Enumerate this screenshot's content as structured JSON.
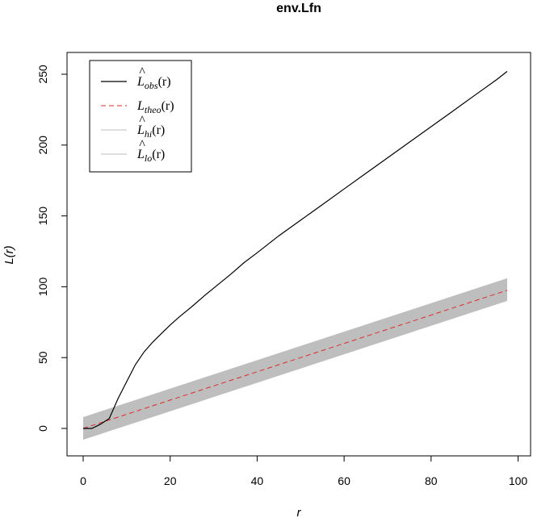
{
  "chart_data": {
    "type": "line",
    "title": "env.Lfn",
    "xlabel": "r",
    "ylabel": "L(r)",
    "xlim": [
      0,
      100
    ],
    "ylim": [
      0,
      250
    ],
    "xticks": [
      0,
      20,
      40,
      60,
      80,
      100
    ],
    "yticks": [
      0,
      50,
      100,
      150,
      200,
      250
    ],
    "legend_position": "top-left",
    "grid": false,
    "colors": {
      "obs": "#000000",
      "theo": "#df2a2a",
      "envelope": "#bebebe"
    },
    "legend": [
      {
        "key": "obs",
        "label_main": "L",
        "label_hat": "^",
        "label_sub": "obs",
        "label_arg": "(r)",
        "style": "solid",
        "color": "#000000"
      },
      {
        "key": "theo",
        "label_main": "L",
        "label_hat": "",
        "label_sub": "theo",
        "label_arg": "(r)",
        "style": "dashed",
        "color": "#df2a2a"
      },
      {
        "key": "hi",
        "label_main": "L",
        "label_hat": "^",
        "label_sub": "hi",
        "label_arg": "(r)",
        "style": "solid",
        "color": "#bebebe"
      },
      {
        "key": "lo",
        "label_main": "L",
        "label_hat": "^",
        "label_sub": "lo",
        "label_arg": "(r)",
        "style": "solid",
        "color": "#bebebe"
      }
    ],
    "series": [
      {
        "name": "obs",
        "x": [
          0,
          2,
          4,
          6,
          8,
          10,
          12,
          14,
          16,
          18,
          20,
          22,
          25,
          28,
          30,
          34,
          37,
          40,
          45,
          50,
          55,
          60,
          65,
          70,
          75,
          80,
          85,
          90,
          95,
          97.5
        ],
        "y": [
          0,
          0,
          3,
          7,
          21,
          33,
          45,
          54,
          61,
          67,
          73,
          78.5,
          86,
          94,
          99,
          109,
          117,
          124,
          136,
          147,
          158,
          169,
          180,
          191,
          202,
          213,
          224,
          235,
          246,
          252
        ]
      },
      {
        "name": "theo",
        "x": [
          0,
          97.5
        ],
        "y": [
          0,
          97.5
        ]
      },
      {
        "name": "hi",
        "x": [
          0,
          97.5
        ],
        "y": [
          8,
          106
        ]
      },
      {
        "name": "lo",
        "x": [
          0,
          97.5
        ],
        "y": [
          -8,
          90
        ]
      }
    ]
  }
}
